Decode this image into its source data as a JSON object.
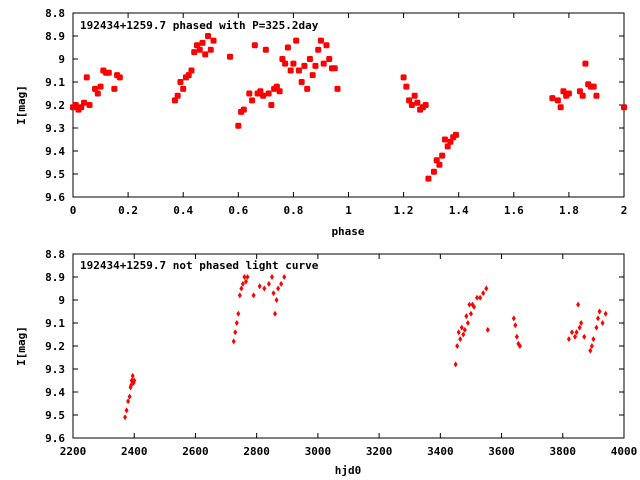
{
  "colors": {
    "points": "#ff0000",
    "axis": "#000000",
    "background": "#ffffff"
  },
  "chart_data": [
    {
      "type": "scatter",
      "title": "192434+1259.7 phased with P=325.2day",
      "xlabel": "phase",
      "ylabel": "I[mag]",
      "xlim": [
        0,
        2
      ],
      "ylim": [
        8.8,
        9.6
      ],
      "y_inverted": true,
      "grid": false,
      "xticks": [
        "0",
        "0.2",
        "0.4",
        "0.6",
        "0.8",
        "1",
        "1.2",
        "1.4",
        "1.6",
        "1.8",
        "2"
      ],
      "yticks": [
        "8.8",
        "8.9",
        "9",
        "9.1",
        "9.2",
        "9.3",
        "9.4",
        "9.5",
        "9.6"
      ],
      "marker": "filled-circle",
      "x": [
        0.0,
        0.01,
        0.02,
        0.03,
        0.04,
        0.05,
        0.06,
        0.08,
        0.09,
        0.1,
        0.11,
        0.12,
        0.13,
        0.15,
        0.16,
        0.17,
        0.37,
        0.38,
        0.39,
        0.4,
        0.41,
        0.42,
        0.43,
        0.44,
        0.45,
        0.46,
        0.47,
        0.48,
        0.49,
        0.5,
        0.51,
        0.57,
        0.6,
        0.61,
        0.62,
        0.64,
        0.65,
        0.66,
        0.67,
        0.68,
        0.69,
        0.7,
        0.71,
        0.72,
        0.73,
        0.74,
        0.75,
        0.76,
        0.77,
        0.78,
        0.79,
        0.8,
        0.81,
        0.82,
        0.83,
        0.84,
        0.85,
        0.86,
        0.87,
        0.88,
        0.89,
        0.9,
        0.91,
        0.92,
        0.93,
        0.94,
        0.95,
        0.96,
        1.2,
        1.21,
        1.22,
        1.23,
        1.24,
        1.25,
        1.26,
        1.27,
        1.28,
        1.29,
        1.31,
        1.32,
        1.33,
        1.34,
        1.35,
        1.36,
        1.37,
        1.38,
        1.39,
        1.74,
        1.76,
        1.77,
        1.78,
        1.79,
        1.8,
        1.84,
        1.85,
        1.86,
        1.87,
        1.88,
        1.89,
        1.9,
        2.0
      ],
      "y": [
        9.21,
        9.2,
        9.22,
        9.21,
        9.19,
        9.08,
        9.2,
        9.13,
        9.15,
        9.12,
        9.05,
        9.06,
        9.06,
        9.13,
        9.07,
        9.08,
        9.18,
        9.16,
        9.1,
        9.13,
        9.08,
        9.07,
        9.05,
        8.97,
        8.94,
        8.96,
        8.93,
        8.98,
        8.9,
        8.96,
        8.92,
        8.99,
        9.29,
        9.23,
        9.22,
        9.15,
        9.18,
        8.94,
        9.15,
        9.14,
        9.16,
        8.96,
        9.15,
        9.2,
        9.13,
        9.12,
        9.14,
        9.0,
        9.02,
        8.95,
        9.05,
        9.02,
        8.92,
        9.05,
        9.1,
        9.03,
        9.13,
        9.0,
        9.07,
        9.03,
        8.96,
        8.92,
        9.02,
        8.94,
        9.0,
        9.04,
        9.04,
        9.13,
        9.08,
        9.12,
        9.18,
        9.2,
        9.16,
        9.19,
        9.22,
        9.21,
        9.2,
        9.52,
        9.49,
        9.44,
        9.46,
        9.42,
        9.35,
        9.38,
        9.36,
        9.34,
        9.33,
        9.17,
        9.18,
        9.21,
        9.14,
        9.16,
        9.15,
        9.14,
        9.16,
        9.02,
        9.11,
        9.12,
        9.12,
        9.16,
        9.21
      ]
    },
    {
      "type": "scatter",
      "title": "192434+1259.7 not phased light curve",
      "xlabel": "hjd0",
      "ylabel": "I[mag]",
      "xlim": [
        2200,
        4000
      ],
      "ylim": [
        8.8,
        9.6
      ],
      "y_inverted": true,
      "grid": false,
      "xticks": [
        "2200",
        "2400",
        "2600",
        "2800",
        "3000",
        "3200",
        "3400",
        "3600",
        "3800",
        "4000"
      ],
      "yticks": [
        "8.8",
        "8.9",
        "9",
        "9.1",
        "9.2",
        "9.3",
        "9.4",
        "9.5",
        "9.6"
      ],
      "marker": "diamond",
      "x": [
        2370,
        2375,
        2380,
        2385,
        2388,
        2390,
        2392,
        2395,
        2398,
        2400,
        2725,
        2730,
        2735,
        2740,
        2745,
        2750,
        2755,
        2760,
        2765,
        2770,
        2790,
        2810,
        2825,
        2840,
        2850,
        2855,
        2860,
        2865,
        2870,
        2880,
        2890,
        3450,
        3455,
        3460,
        3465,
        3470,
        3475,
        3480,
        3485,
        3490,
        3495,
        3500,
        3505,
        3510,
        3520,
        3530,
        3540,
        3550,
        3555,
        3640,
        3645,
        3650,
        3655,
        3660,
        3820,
        3830,
        3840,
        3845,
        3850,
        3855,
        3860,
        3870,
        3890,
        3895,
        3900,
        3910,
        3915,
        3920,
        3930,
        3940
      ],
      "y": [
        9.51,
        9.48,
        9.44,
        9.42,
        9.38,
        9.37,
        9.35,
        9.33,
        9.36,
        9.35,
        9.18,
        9.14,
        9.1,
        9.06,
        8.98,
        8.95,
        8.93,
        8.9,
        8.92,
        8.9,
        8.98,
        8.94,
        8.95,
        8.93,
        8.9,
        8.97,
        9.06,
        9.0,
        8.95,
        8.93,
        8.9,
        9.28,
        9.2,
        9.14,
        9.17,
        9.12,
        9.15,
        9.13,
        9.07,
        9.1,
        9.02,
        9.06,
        9.02,
        9.03,
        8.99,
        8.99,
        8.97,
        8.95,
        9.13,
        9.08,
        9.11,
        9.16,
        9.19,
        9.2,
        9.17,
        9.14,
        9.16,
        9.14,
        9.02,
        9.12,
        9.1,
        9.16,
        9.22,
        9.2,
        9.17,
        9.12,
        9.08,
        9.05,
        9.1,
        9.06
      ]
    }
  ]
}
